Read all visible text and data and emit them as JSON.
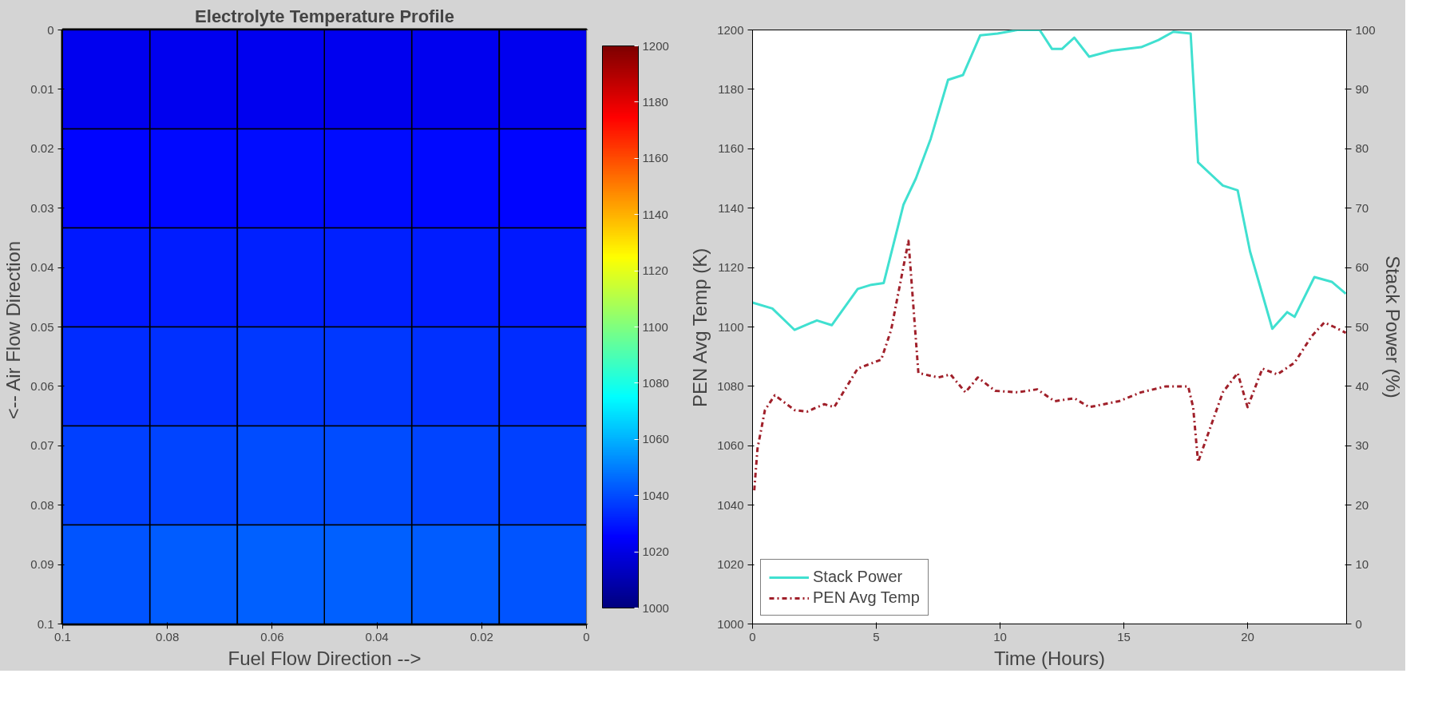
{
  "chart_data": [
    {
      "type": "heatmap",
      "title": "Electrolyte Temperature Profile",
      "xlabel": "Fuel Flow Direction -->",
      "ylabel": "<--  Air Flow Direction",
      "x": [
        0.0917,
        0.075,
        0.0583,
        0.0417,
        0.025,
        0.0083
      ],
      "xlim": [
        0.1,
        0
      ],
      "xticks": [
        0.1,
        0.08,
        0.06,
        0.04,
        0.02,
        0
      ],
      "ylim": [
        0.1,
        0
      ],
      "yticks": [
        0,
        0.01,
        0.02,
        0.03,
        0.04,
        0.05,
        0.06,
        0.07,
        0.08,
        0.09,
        0.1
      ],
      "cells": [
        [
          1022,
          1022,
          1022,
          1022,
          1022,
          1022
        ],
        [
          1026,
          1027,
          1028,
          1028,
          1027,
          1026
        ],
        [
          1030,
          1031,
          1032,
          1032,
          1031,
          1030
        ],
        [
          1034,
          1035,
          1036,
          1036,
          1035,
          1034
        ],
        [
          1038,
          1039,
          1040,
          1040,
          1039,
          1038
        ],
        [
          1042,
          1043,
          1044,
          1044,
          1043,
          1042
        ]
      ],
      "clim": [
        1000,
        1200
      ],
      "cticks": [
        1000,
        1020,
        1040,
        1060,
        1080,
        1100,
        1120,
        1140,
        1160,
        1180,
        1200
      ],
      "grid": false
    },
    {
      "type": "line",
      "xlabel": "Time (Hours)",
      "ylabel": "PEN Avg Temp (K)",
      "y2label": "Stack Power (%)",
      "xlim": [
        0,
        24
      ],
      "xticks": [
        0,
        5,
        10,
        15,
        20
      ],
      "ylim": [
        1000,
        1200
      ],
      "yticks": [
        1000,
        1020,
        1040,
        1060,
        1080,
        1100,
        1120,
        1140,
        1160,
        1180,
        1200
      ],
      "y2lim": [
        0,
        100
      ],
      "y2ticks": [
        0,
        10,
        20,
        30,
        40,
        50,
        60,
        70,
        80,
        90,
        100
      ],
      "grid": false,
      "legend": "bottom left",
      "marker": "none",
      "series": [
        {
          "name": "Stack Power",
          "color": "#40e0d0",
          "axis": "y2",
          "line_style": "solid",
          "x": [
            0,
            0.8,
            1.7,
            2.6,
            3.2,
            4.25,
            4.8,
            5.3,
            6.1,
            6.6,
            7.2,
            7.9,
            8.5,
            9.2,
            9.9,
            10.7,
            11.6,
            12.1,
            12.5,
            13.0,
            13.6,
            14.5,
            15.7,
            16.4,
            17.0,
            17.7,
            18.0,
            19.0,
            19.6,
            20.1,
            21.0,
            21.6,
            21.9,
            22.7,
            23.4,
            23.97
          ],
          "values": [
            54.1,
            53.1,
            49.5,
            51.1,
            50.3,
            56.4,
            57.1,
            57.4,
            70.6,
            75.0,
            81.7,
            91.6,
            92.4,
            99.1,
            99.4,
            100,
            100,
            96.8,
            96.8,
            98.7,
            95.5,
            96.5,
            97.1,
            98.3,
            99.7,
            99.4,
            77.7,
            73.8,
            73.0,
            62.7,
            49.7,
            52.5,
            51.7,
            58.4,
            57.6,
            55.6
          ]
        },
        {
          "name": "PEN Avg Temp",
          "color": "#a0202a",
          "axis": "y",
          "line_style": "dashdot",
          "x": [
            0.07,
            0.2,
            0.5,
            0.9,
            1.7,
            2.2,
            2.9,
            3.3,
            4.25,
            5.2,
            5.6,
            6.3,
            6.7,
            7.5,
            8.0,
            8.6,
            9.1,
            9.8,
            10.7,
            11.5,
            12.2,
            13.0,
            13.6,
            14.8,
            15.7,
            16.7,
            17.6,
            17.8,
            18.0,
            19.0,
            19.6,
            20.0,
            20.6,
            21.2,
            21.9,
            22.6,
            23.1,
            23.5,
            23.97
          ],
          "values": [
            1045,
            1059,
            1072,
            1077,
            1072,
            1071.5,
            1074,
            1073,
            1086,
            1089,
            1099,
            1129,
            1084.5,
            1083,
            1084,
            1078,
            1083,
            1078.5,
            1078,
            1079,
            1075,
            1076,
            1073,
            1075,
            1078,
            1080,
            1080,
            1073,
            1054.5,
            1078,
            1084.5,
            1073,
            1086,
            1084,
            1088,
            1097,
            1101.5,
            1100,
            1098
          ]
        }
      ]
    }
  ]
}
